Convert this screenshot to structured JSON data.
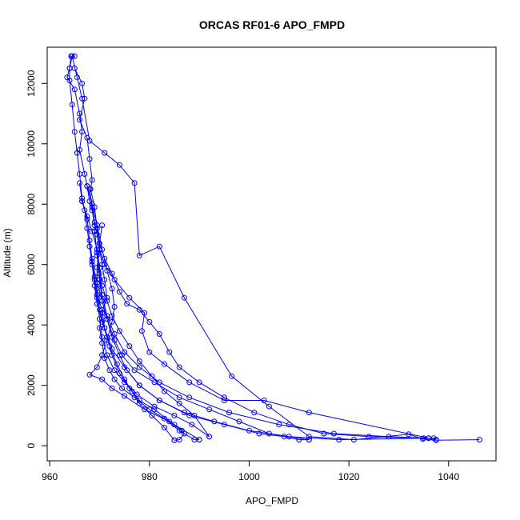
{
  "chart_data": {
    "type": "line",
    "title": "ORCAS RF01-6 APO_FMPD",
    "xlabel": "APO_FMPD",
    "ylabel": "Altitude (m)",
    "xlim": [
      959.5,
      1049.5
    ],
    "ylim": [
      -500,
      13200
    ],
    "xticks": [
      960,
      980,
      1000,
      1020,
      1040
    ],
    "yticks": [
      0,
      2000,
      4000,
      6000,
      8000,
      10000,
      12000
    ],
    "color": "#0000ff",
    "marker": "open-circle",
    "series": [
      {
        "points": [
          [
            1046.2,
            200
          ],
          [
            1037.5,
            180
          ],
          [
            1034.8,
            220
          ],
          [
            1032.0,
            380
          ],
          [
            1021.0,
            200
          ],
          [
            1012.0,
            300
          ],
          [
            1004.0,
            1300
          ],
          [
            996.5,
            2300
          ],
          [
            987.0,
            4900
          ],
          [
            982.0,
            6600
          ],
          [
            978.0,
            6300
          ],
          [
            977.0,
            8700
          ],
          [
            974.0,
            9300
          ],
          [
            971.0,
            9700
          ],
          [
            968.0,
            10100
          ],
          [
            966.5,
            11500
          ],
          [
            965.5,
            12200
          ],
          [
            964.5,
            12900
          ]
        ]
      },
      {
        "points": [
          [
            964.5,
            12900
          ],
          [
            964.0,
            12500
          ],
          [
            963.5,
            12200
          ],
          [
            965.0,
            11800
          ],
          [
            966.0,
            11000
          ],
          [
            966.5,
            10400
          ],
          [
            966.0,
            9800
          ],
          [
            967.0,
            9000
          ],
          [
            967.5,
            8600
          ],
          [
            968.0,
            8100
          ],
          [
            968.5,
            7800
          ],
          [
            969.0,
            7300
          ],
          [
            969.5,
            7000
          ],
          [
            970.0,
            6500
          ],
          [
            970.5,
            6000
          ],
          [
            971.0,
            5500
          ],
          [
            971.5,
            4900
          ],
          [
            970.5,
            4400
          ],
          [
            970.0,
            3900
          ],
          [
            970.5,
            3400
          ],
          [
            971.0,
            2900
          ],
          [
            972.0,
            2500
          ],
          [
            973.0,
            2200
          ],
          [
            974.5,
            1900
          ],
          [
            977.0,
            1600
          ],
          [
            980.0,
            1200
          ],
          [
            983.0,
            900
          ],
          [
            986.0,
            500
          ],
          [
            989.0,
            200
          ],
          [
            990.0,
            200
          ]
        ]
      },
      {
        "points": [
          [
            990.0,
            200
          ],
          [
            985.0,
            700
          ],
          [
            981.0,
            1200
          ],
          [
            978.0,
            1500
          ],
          [
            976.0,
            1900
          ],
          [
            974.0,
            2400
          ],
          [
            972.5,
            3000
          ],
          [
            971.5,
            3600
          ],
          [
            970.5,
            4100
          ],
          [
            969.5,
            4700
          ],
          [
            969.0,
            5300
          ],
          [
            968.5,
            6000
          ],
          [
            968.0,
            6600
          ],
          [
            967.5,
            7200
          ],
          [
            967.0,
            7800
          ],
          [
            966.5,
            8200
          ],
          [
            966.0,
            9000
          ],
          [
            965.5,
            9700
          ],
          [
            965.0,
            10400
          ],
          [
            964.5,
            11300
          ],
          [
            964.0,
            12100
          ],
          [
            964.0,
            12500
          ],
          [
            964.3,
            12900
          ],
          [
            965.0,
            12900
          ]
        ]
      },
      {
        "points": [
          [
            965.0,
            12500
          ],
          [
            966.5,
            12000
          ],
          [
            967.0,
            11500
          ],
          [
            966.0,
            10800
          ],
          [
            967.5,
            10200
          ],
          [
            968.0,
            9500
          ],
          [
            968.5,
            8800
          ],
          [
            968.2,
            8500
          ],
          [
            969.0,
            7900
          ],
          [
            969.5,
            7200
          ],
          [
            970.0,
            6700
          ],
          [
            971.0,
            6200
          ],
          [
            972.5,
            5700
          ],
          [
            974.0,
            5100
          ],
          [
            975.5,
            4700
          ],
          [
            978.0,
            4500
          ],
          [
            980.0,
            4100
          ],
          [
            982.0,
            3700
          ],
          [
            984.0,
            3100
          ],
          [
            986.0,
            2600
          ],
          [
            990.0,
            2100
          ],
          [
            995.0,
            1600
          ],
          [
            1001.0,
            1100
          ],
          [
            1008.0,
            700
          ],
          [
            1015.0,
            400
          ],
          [
            1024.0,
            300
          ],
          [
            1035.0,
            250
          ],
          [
            1037.0,
            250
          ],
          [
            1037.5,
            200
          ]
        ]
      },
      {
        "points": [
          [
            1037.5,
            200
          ],
          [
            1012.0,
            1100
          ],
          [
            1003.0,
            1500
          ],
          [
            995.0,
            1500
          ],
          [
            988.0,
            2100
          ],
          [
            983.0,
            2700
          ],
          [
            980.0,
            3100
          ],
          [
            978.5,
            3800
          ],
          [
            979.0,
            4400
          ],
          [
            976.0,
            4900
          ],
          [
            973.0,
            5500
          ],
          [
            971.0,
            6000
          ],
          [
            970.0,
            6500
          ],
          [
            969.5,
            7000
          ],
          [
            969.0,
            7400
          ],
          [
            968.5,
            7900
          ],
          [
            968.0,
            8500
          ],
          [
            967.5,
            8600
          ]
        ]
      },
      {
        "points": [
          [
            967.5,
            8600
          ],
          [
            968.5,
            8000
          ],
          [
            969.5,
            7300
          ],
          [
            970.5,
            6500
          ],
          [
            971.5,
            5800
          ],
          [
            972.5,
            5200
          ],
          [
            973.0,
            4600
          ],
          [
            972.5,
            4100
          ],
          [
            971.5,
            3500
          ],
          [
            970.5,
            3000
          ],
          [
            969.5,
            2600
          ],
          [
            968.0,
            2350
          ],
          [
            970.5,
            2200
          ],
          [
            972.5,
            1900
          ],
          [
            975.0,
            1650
          ],
          [
            979.0,
            1200
          ],
          [
            984.0,
            800
          ],
          [
            986.5,
            500
          ],
          [
            987.0,
            400
          ],
          [
            986.0,
            200
          ],
          [
            985.0,
            180
          ]
        ]
      },
      {
        "points": [
          [
            985.0,
            180
          ],
          [
            983.0,
            600
          ],
          [
            980.5,
            1000
          ],
          [
            978.0,
            1400
          ],
          [
            976.5,
            1800
          ],
          [
            975.0,
            2200
          ],
          [
            973.5,
            2700
          ],
          [
            972.0,
            3300
          ],
          [
            971.0,
            3900
          ],
          [
            970.5,
            4500
          ],
          [
            969.5,
            5000
          ],
          [
            969.0,
            5600
          ],
          [
            968.5,
            6200
          ],
          [
            968.0,
            6800
          ],
          [
            967.5,
            7500
          ],
          [
            966.5,
            8100
          ],
          [
            966.0,
            8700
          ]
        ]
      },
      {
        "points": [
          [
            966.5,
            8100
          ],
          [
            967.5,
            7600
          ],
          [
            968.5,
            7100
          ],
          [
            969.5,
            6500
          ],
          [
            970.0,
            5900
          ],
          [
            970.5,
            5300
          ],
          [
            971.5,
            4800
          ],
          [
            972.5,
            4300
          ],
          [
            974.0,
            3800
          ],
          [
            976.0,
            3300
          ],
          [
            978.0,
            2800
          ],
          [
            980.5,
            2300
          ],
          [
            983.0,
            1800
          ],
          [
            986.0,
            1400
          ],
          [
            989.0,
            1000
          ],
          [
            992.0,
            300
          ]
        ]
      },
      {
        "points": [
          [
            992.0,
            300
          ],
          [
            988.5,
            700
          ],
          [
            985.0,
            1000
          ],
          [
            981.0,
            1300
          ],
          [
            977.5,
            1700
          ],
          [
            975.0,
            2100
          ],
          [
            973.0,
            2500
          ],
          [
            971.5,
            3000
          ],
          [
            970.5,
            3600
          ],
          [
            970.0,
            4200
          ],
          [
            969.5,
            4900
          ],
          [
            969.0,
            5500
          ],
          [
            968.5,
            6100
          ]
        ]
      },
      {
        "points": [
          [
            968.5,
            6100
          ],
          [
            969.5,
            5400
          ],
          [
            970.5,
            4800
          ],
          [
            971.5,
            4200
          ],
          [
            972.5,
            3600
          ],
          [
            974.0,
            3000
          ],
          [
            975.5,
            2500
          ],
          [
            978.0,
            2000
          ],
          [
            982.0,
            1500
          ],
          [
            988.0,
            1000
          ],
          [
            995.0,
            700
          ],
          [
            1002.0,
            400
          ],
          [
            1007.0,
            300
          ],
          [
            1010.0,
            200
          ],
          [
            1012.0,
            200
          ]
        ]
      },
      {
        "points": [
          [
            1012.0,
            200
          ],
          [
            1004.0,
            400
          ],
          [
            998.0,
            800
          ],
          [
            992.0,
            1200
          ],
          [
            986.0,
            1600
          ],
          [
            981.0,
            2100
          ],
          [
            977.0,
            2500
          ],
          [
            974.5,
            3000
          ],
          [
            973.0,
            3500
          ],
          [
            971.5,
            4200
          ],
          [
            970.5,
            4800
          ],
          [
            970.0,
            5500
          ],
          [
            969.5,
            6300
          ],
          [
            969.0,
            7100
          ]
        ]
      },
      {
        "points": [
          [
            969.0,
            7100
          ],
          [
            969.5,
            6400
          ],
          [
            970.0,
            5700
          ],
          [
            970.5,
            5000
          ],
          [
            971.5,
            4300
          ],
          [
            973.0,
            3700
          ],
          [
            975.0,
            3100
          ],
          [
            978.0,
            2600
          ],
          [
            982.0,
            2100
          ],
          [
            988.0,
            1600
          ],
          [
            996.0,
            1100
          ],
          [
            1006.0,
            700
          ],
          [
            1017.0,
            400
          ],
          [
            1028.0,
            300
          ],
          [
            1036.0,
            250
          ]
        ]
      },
      {
        "points": [
          [
            1036.0,
            250
          ],
          [
            1018.0,
            200
          ],
          [
            1008.0,
            300
          ],
          [
            1000.0,
            500
          ],
          [
            993.0,
            800
          ],
          [
            987.0,
            1100
          ],
          [
            982.0,
            1500
          ],
          [
            978.0,
            2000
          ],
          [
            975.0,
            2600
          ],
          [
            972.5,
            3200
          ],
          [
            971.0,
            3900
          ],
          [
            970.0,
            4500
          ],
          [
            969.5,
            5200
          ],
          [
            969.5,
            5900
          ],
          [
            970.0,
            6700
          ],
          [
            970.5,
            7300
          ]
        ]
      }
    ]
  }
}
